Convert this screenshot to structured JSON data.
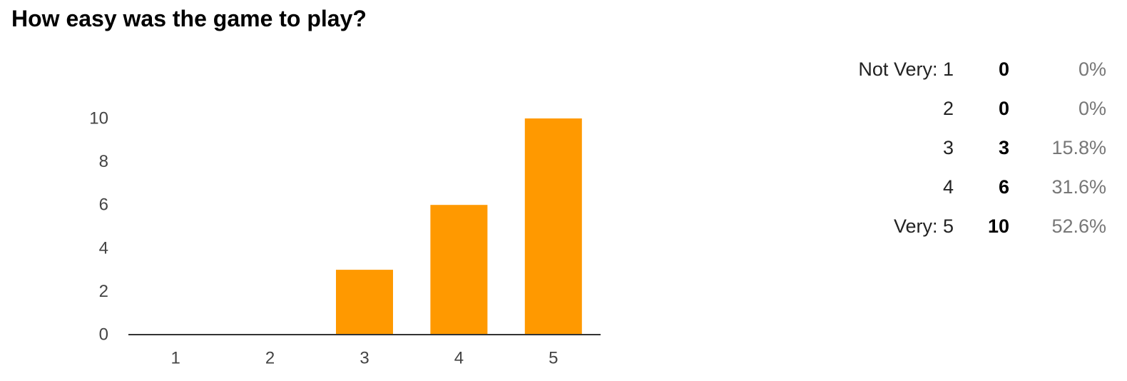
{
  "question": {
    "title": "How easy was the game to play?"
  },
  "summary": {
    "rows": [
      {
        "label": "Not Very: 1",
        "count": "0",
        "percent": "0%"
      },
      {
        "label": "2",
        "count": "0",
        "percent": "0%"
      },
      {
        "label": "3",
        "count": "3",
        "percent": "15.8%"
      },
      {
        "label": "4",
        "count": "6",
        "percent": "31.6%"
      },
      {
        "label": "Very: 5",
        "count": "10",
        "percent": "52.6%"
      }
    ]
  },
  "chart_data": {
    "type": "bar",
    "title": "",
    "xlabel": "",
    "ylabel": "",
    "categories": [
      "1",
      "2",
      "3",
      "4",
      "5"
    ],
    "values": [
      0,
      0,
      3,
      6,
      10
    ],
    "ylim": [
      0,
      10
    ],
    "yticks": [
      "0",
      "2",
      "4",
      "6",
      "8",
      "10"
    ],
    "grid": false,
    "legend": "none",
    "colors": {
      "bar": "#ff9900",
      "axis": "#333333",
      "tick_label": "#444444"
    }
  }
}
